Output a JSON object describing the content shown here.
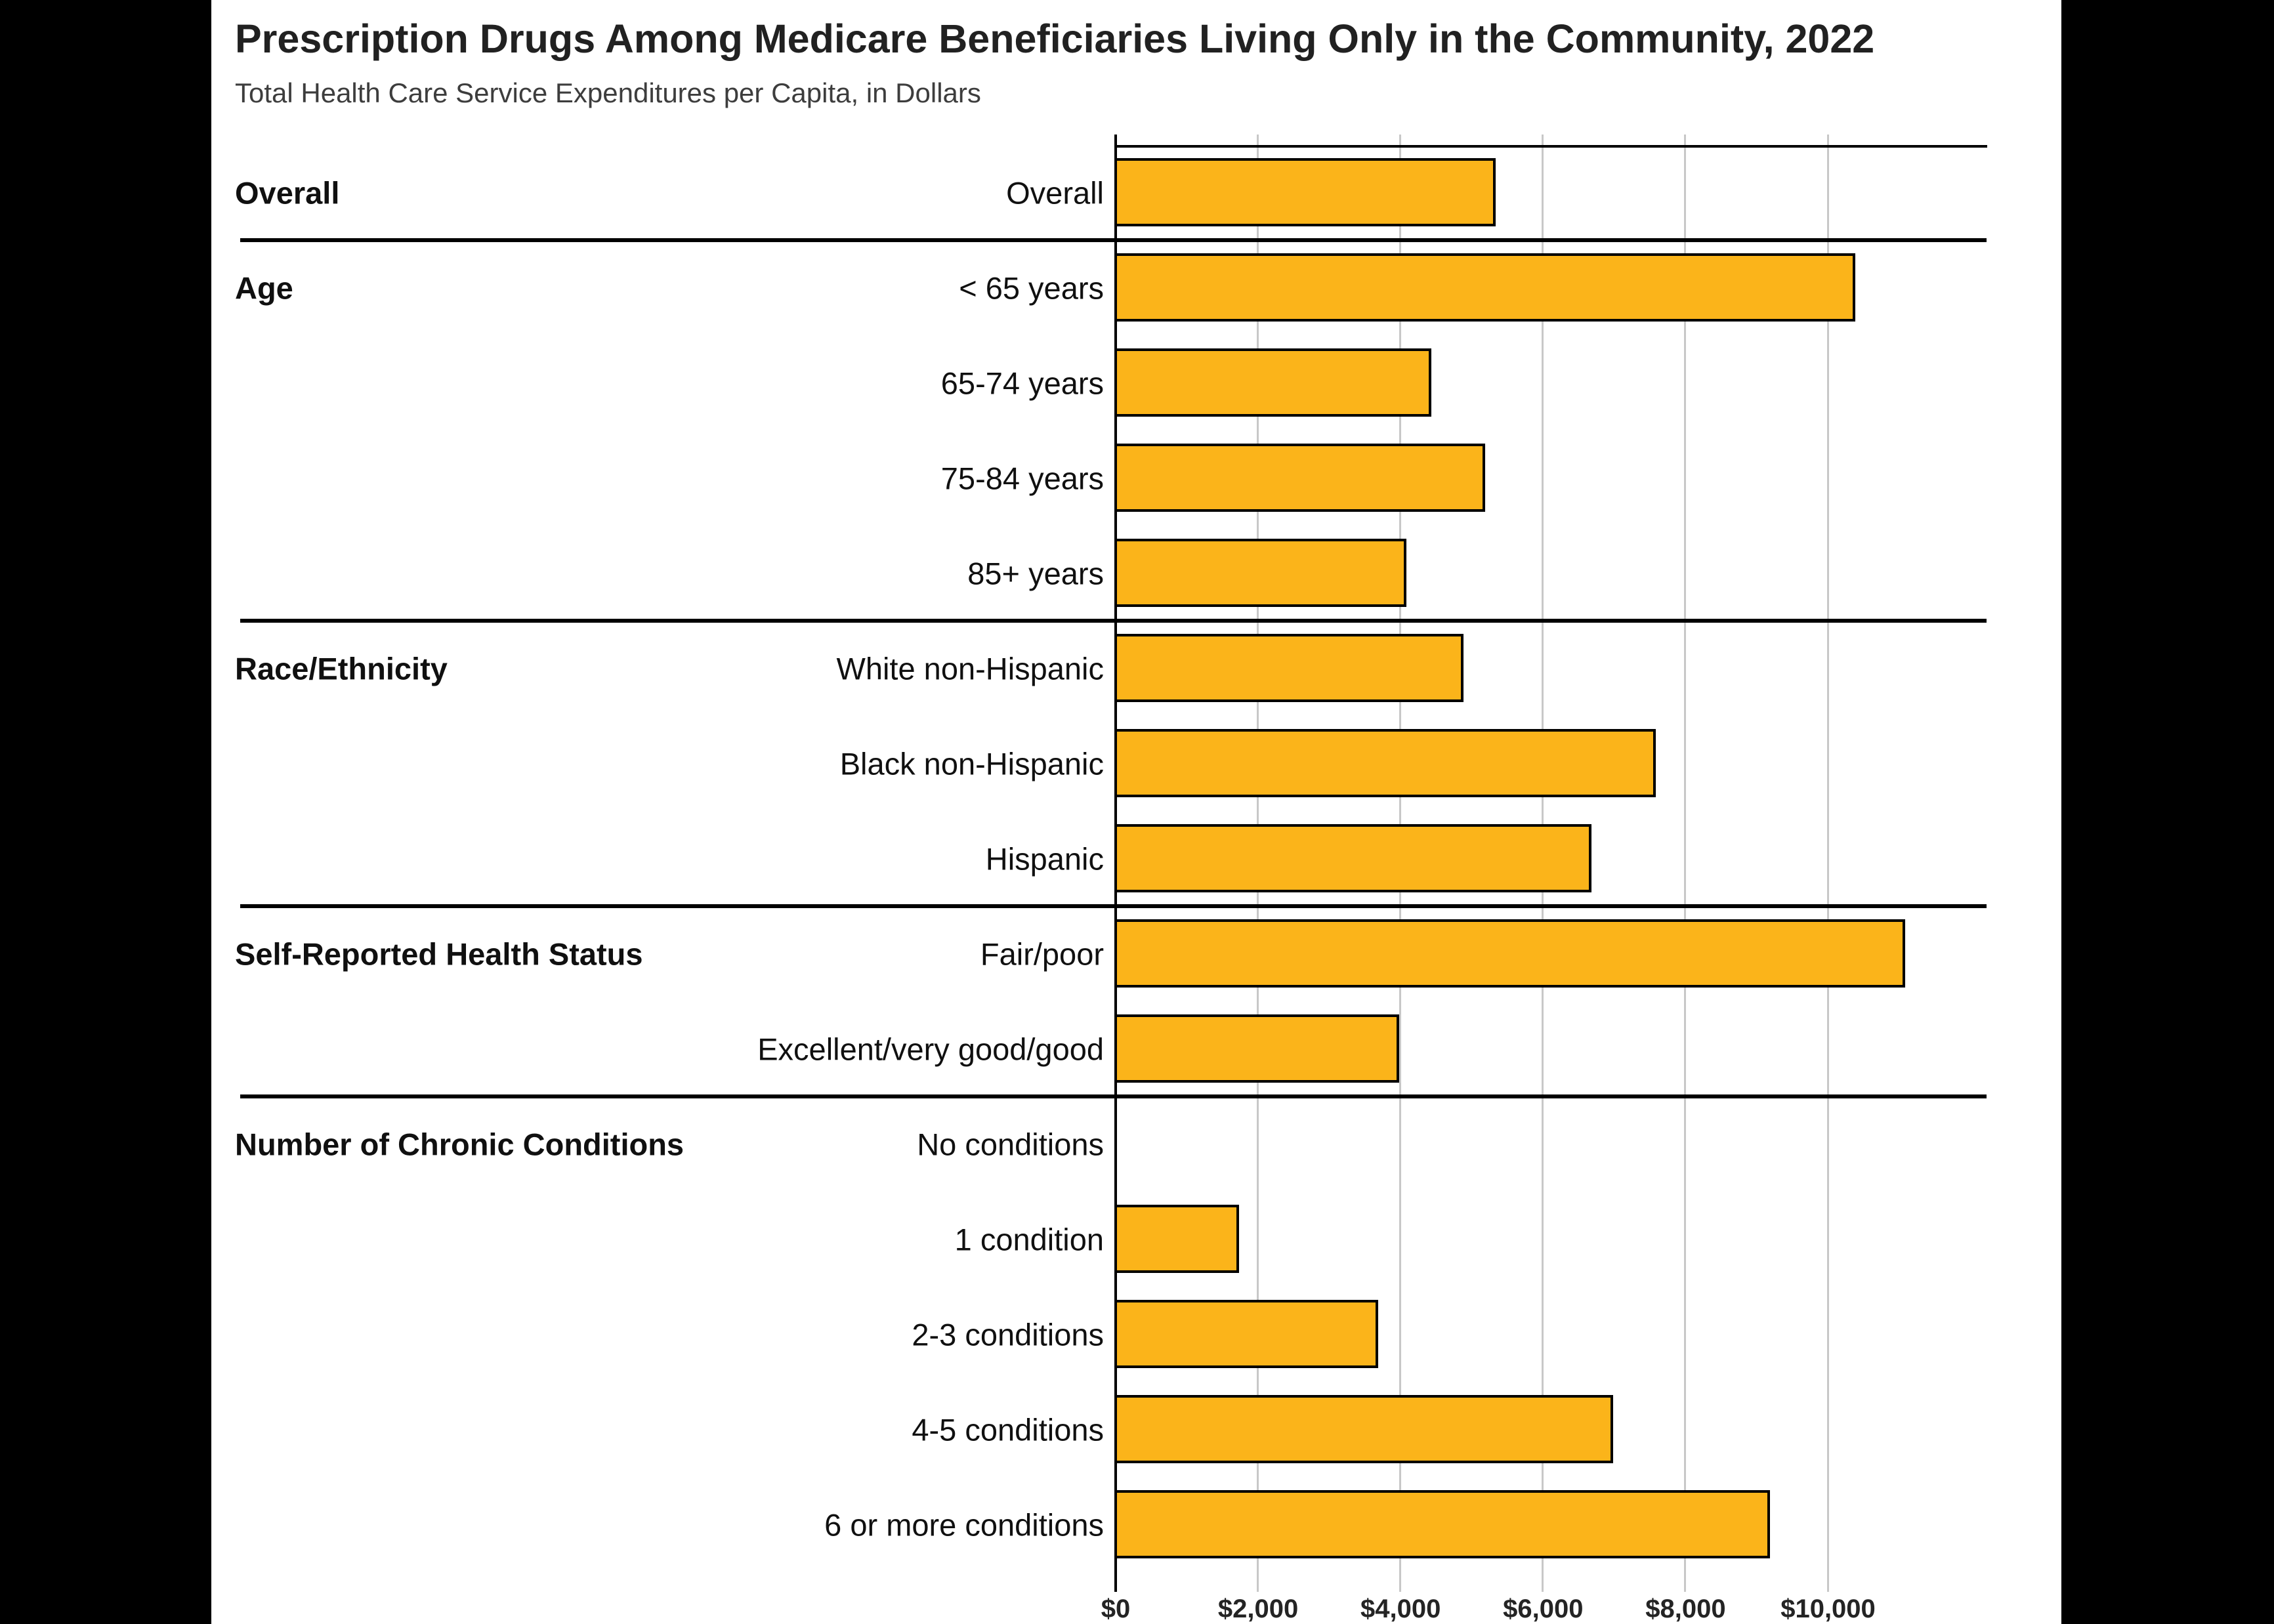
{
  "colors": {
    "page_bg": "#000000",
    "panel_bg": "#FFFFFF",
    "bar_fill": "#FBB41A",
    "bar_border": "#000000",
    "gridline": "#C8C8C8",
    "axis": "#000000"
  },
  "chart_data": {
    "type": "bar",
    "orientation": "horizontal",
    "title": "Prescription Drugs Among Medicare Beneficiaries Living Only in the Community, 2022",
    "subtitle": "Total Health Care Service Expenditures per Capita, in Dollars",
    "xlabel": "",
    "ylabel": "",
    "xlim": [
      0,
      12250
    ],
    "grid": "vertical",
    "x_tick_values": [
      0,
      2000,
      4000,
      6000,
      8000,
      10000
    ],
    "x_tick_labels": [
      "$0",
      "$2,000",
      "$4,000",
      "$6,000",
      "$8,000",
      "$10,000"
    ],
    "groups": [
      {
        "label": "Overall",
        "rows": [
          {
            "label": "Overall",
            "value": 5350
          }
        ]
      },
      {
        "label": "Age",
        "rows": [
          {
            "label": "< 65 years",
            "value": 10400
          },
          {
            "label": "65-74 years",
            "value": 4450
          },
          {
            "label": "75-84 years",
            "value": 5200
          },
          {
            "label": "85+ years",
            "value": 4100
          }
        ]
      },
      {
        "label": "Race/Ethnicity",
        "rows": [
          {
            "label": "White non-Hispanic",
            "value": 4900
          },
          {
            "label": "Black non-Hispanic",
            "value": 7600
          },
          {
            "label": "Hispanic",
            "value": 6700
          }
        ]
      },
      {
        "label": "Self-Reported Health Status",
        "rows": [
          {
            "label": "Fair/poor",
            "value": 11100
          },
          {
            "label": "Excellent/very good/good",
            "value": 4000
          }
        ]
      },
      {
        "label": "Number of Chronic Conditions",
        "rows": [
          {
            "label": "No conditions",
            "value": 0
          },
          {
            "label": "1 condition",
            "value": 1750
          },
          {
            "label": "2-3 conditions",
            "value": 3700
          },
          {
            "label": "4-5 conditions",
            "value": 7000
          },
          {
            "label": "6 or more conditions",
            "value": 9200
          }
        ]
      }
    ]
  }
}
